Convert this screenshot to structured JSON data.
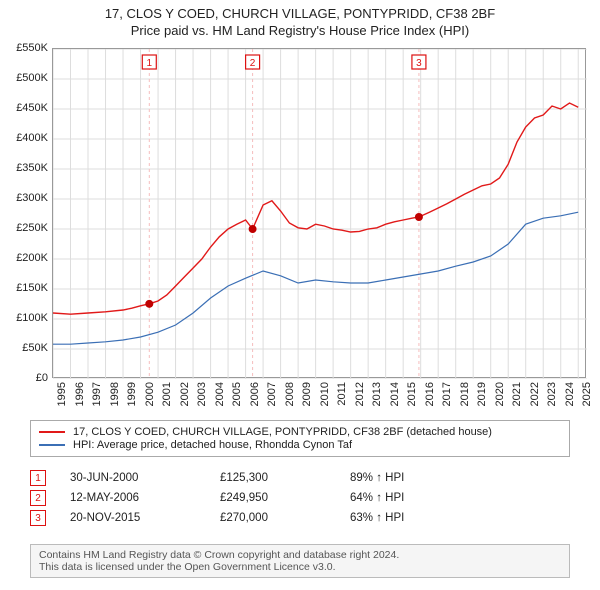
{
  "title": {
    "line1": "17, CLOS Y COED, CHURCH VILLAGE, PONTYPRIDD, CF38 2BF",
    "line2": "Price paid vs. HM Land Registry's House Price Index (HPI)"
  },
  "chart": {
    "type": "line",
    "background_color": "#ffffff",
    "border_color": "#999999",
    "grid_color": "#dddddd",
    "x_years": [
      1995,
      1996,
      1997,
      1998,
      1999,
      2000,
      2001,
      2002,
      2003,
      2004,
      2005,
      2006,
      2007,
      2008,
      2009,
      2010,
      2011,
      2012,
      2013,
      2014,
      2015,
      2016,
      2017,
      2018,
      2019,
      2020,
      2021,
      2022,
      2023,
      2024,
      2025
    ],
    "y_ticks": [
      0,
      50000,
      100000,
      150000,
      200000,
      250000,
      300000,
      350000,
      400000,
      450000,
      500000,
      550000
    ],
    "y_tick_labels": [
      "£0",
      "£50K",
      "£100K",
      "£150K",
      "£200K",
      "£250K",
      "£300K",
      "£350K",
      "£400K",
      "£450K",
      "£500K",
      "£550K"
    ],
    "ylim": [
      0,
      550000
    ],
    "xlim": [
      1995,
      2025.5
    ],
    "tick_fontsize": 11,
    "series": [
      {
        "name": "price_paid",
        "label": "17, CLOS Y COED, CHURCH VILLAGE, PONTYPRIDD, CF38 2BF (detached house)",
        "color": "#e11919",
        "line_width": 1.4,
        "x": [
          1995,
          1996,
          1997,
          1998,
          1999,
          1999.5,
          2000,
          2000.5,
          2001,
          2001.5,
          2002,
          2002.5,
          2003,
          2003.5,
          2004,
          2004.5,
          2005,
          2005.5,
          2006,
          2006.4,
          2007,
          2007.5,
          2008,
          2008.5,
          2009,
          2009.5,
          2010,
          2010.5,
          2011,
          2011.5,
          2012,
          2012.5,
          2013,
          2013.5,
          2014,
          2014.5,
          2015,
          2015.5,
          2015.9,
          2016.5,
          2017,
          2017.5,
          2018,
          2018.5,
          2019,
          2019.5,
          2020,
          2020.5,
          2021,
          2021.5,
          2022,
          2022.5,
          2023,
          2023.5,
          2024,
          2024.5,
          2025
        ],
        "y": [
          110000,
          108000,
          110000,
          112000,
          115000,
          118000,
          122000,
          125300,
          130000,
          140000,
          155000,
          170000,
          185000,
          200000,
          220000,
          237000,
          250000,
          258000,
          265000,
          249950,
          290000,
          297000,
          280000,
          260000,
          252000,
          250000,
          258000,
          255000,
          250000,
          248000,
          245000,
          246000,
          250000,
          252000,
          258000,
          262000,
          265000,
          268000,
          270000,
          278000,
          285000,
          292000,
          300000,
          308000,
          315000,
          322000,
          325000,
          335000,
          358000,
          395000,
          420000,
          435000,
          440000,
          455000,
          450000,
          460000,
          453000
        ]
      },
      {
        "name": "hpi",
        "label": "HPI: Average price, detached house, Rhondda Cynon Taf",
        "color": "#3b6fb5",
        "line_width": 1.2,
        "x": [
          1995,
          1996,
          1997,
          1998,
          1999,
          2000,
          2001,
          2002,
          2003,
          2004,
          2005,
          2006,
          2007,
          2008,
          2009,
          2010,
          2011,
          2012,
          2013,
          2014,
          2015,
          2016,
          2017,
          2018,
          2019,
          2020,
          2021,
          2022,
          2023,
          2024,
          2025
        ],
        "y": [
          58000,
          58000,
          60000,
          62000,
          65000,
          70000,
          78000,
          90000,
          110000,
          135000,
          155000,
          168000,
          180000,
          172000,
          160000,
          165000,
          162000,
          160000,
          160000,
          165000,
          170000,
          175000,
          180000,
          188000,
          195000,
          205000,
          225000,
          258000,
          268000,
          272000,
          278000
        ]
      }
    ],
    "event_markers": [
      {
        "n": "1",
        "x": 2000.5,
        "y": 125300,
        "line_color": "#f6bdbd"
      },
      {
        "n": "2",
        "x": 2006.4,
        "y": 249950,
        "line_color": "#f6bdbd"
      },
      {
        "n": "3",
        "x": 2015.9,
        "y": 270000,
        "line_color": "#f6bdbd"
      }
    ],
    "marker_style": {
      "point_color": "#c00000",
      "point_radius": 4,
      "badge_border": "#d11",
      "badge_text": "#d11",
      "badge_size": 14,
      "badge_fontsize": 10
    }
  },
  "legend": {
    "border_color": "#aaaaaa",
    "fontsize": 11
  },
  "events_table": {
    "rows": [
      {
        "n": "1",
        "date": "30-JUN-2000",
        "price": "£125,300",
        "hpi": "89% ↑ HPI"
      },
      {
        "n": "2",
        "date": "12-MAY-2006",
        "price": "£249,950",
        "hpi": "64% ↑ HPI"
      },
      {
        "n": "3",
        "date": "20-NOV-2015",
        "price": "£270,000",
        "hpi": "63% ↑ HPI"
      }
    ]
  },
  "footer": {
    "line1": "Contains HM Land Registry data © Crown copyright and database right 2024.",
    "line2": "This data is licensed under the Open Government Licence v3.0.",
    "background": "#f5f5f5",
    "border": "#bbbbbb",
    "color": "#555555",
    "fontsize": 10.5
  }
}
